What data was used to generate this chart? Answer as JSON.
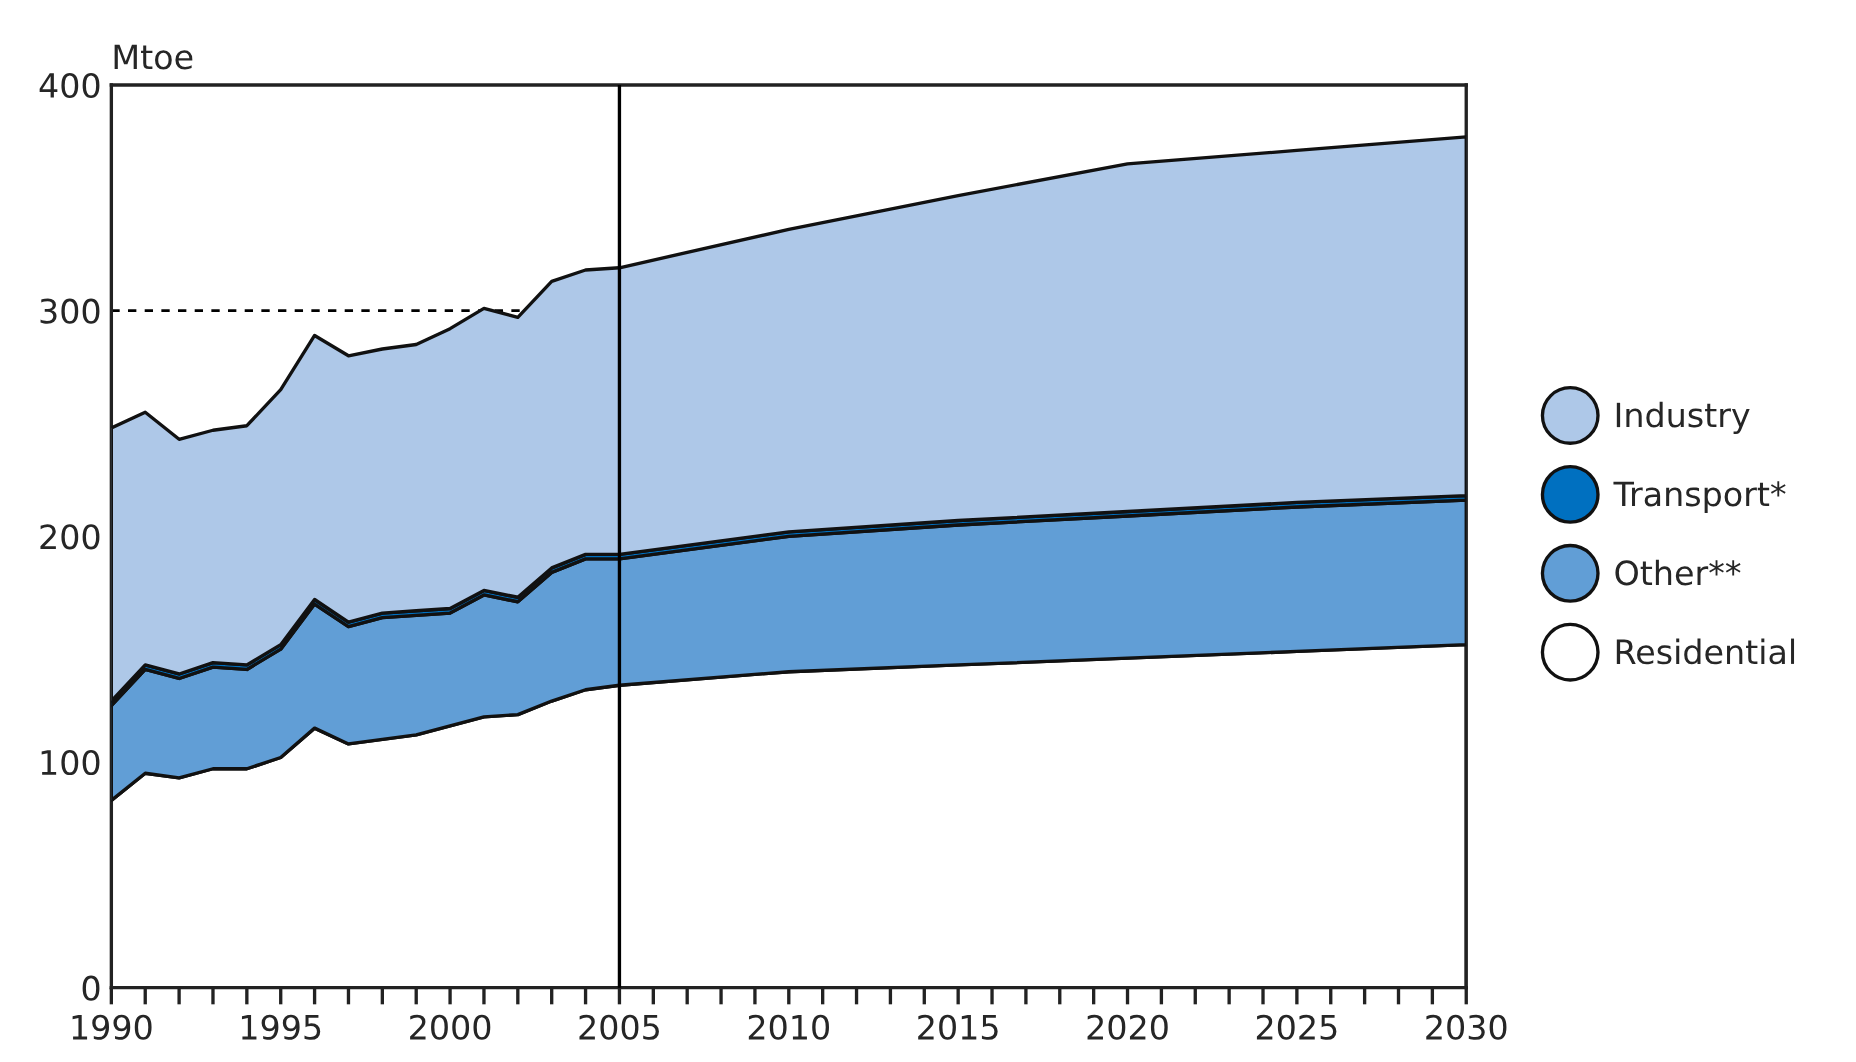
{
  "chart_data": {
    "type": "area",
    "stacked": true,
    "ylabel": "Mtoe",
    "x": [
      1990,
      1991,
      1992,
      1993,
      1994,
      1995,
      1996,
      1997,
      1998,
      1999,
      2000,
      2001,
      2002,
      2003,
      2004,
      2005,
      2010,
      2015,
      2020,
      2025,
      2030
    ],
    "series": [
      {
        "name": "Residential",
        "color": "#ffffff",
        "values": [
          83,
          95,
          93,
          97,
          97,
          102,
          115,
          108,
          110,
          112,
          116,
          120,
          121,
          127,
          132,
          134,
          140,
          143,
          146,
          149,
          152
        ]
      },
      {
        "name": "Other**",
        "color": "#619ed6",
        "values": [
          42,
          46,
          44,
          45,
          44,
          48,
          55,
          52,
          54,
          53,
          50,
          54,
          50,
          57,
          58,
          56,
          60,
          62,
          63,
          64,
          64
        ]
      },
      {
        "name": "Transport*",
        "color": "#0070c0",
        "values": [
          2,
          2,
          2,
          2,
          2,
          2,
          2,
          2,
          2,
          2,
          2,
          2,
          2,
          2,
          2,
          2,
          2,
          2,
          2,
          2,
          2
        ]
      },
      {
        "name": "Industry",
        "color": "#aec8e8",
        "values": [
          121,
          112,
          104,
          103,
          106,
          113,
          117,
          118,
          117,
          118,
          124,
          125,
          124,
          127,
          126,
          127,
          134,
          144,
          154,
          156,
          159
        ]
      }
    ],
    "xlim": [
      1990,
      2030
    ],
    "xticks": [
      1990,
      {
        "value": 1991,
        "label": null
      },
      {
        "value": 1992,
        "label": null
      },
      {
        "value": 1993,
        "label": null
      },
      {
        "value": 1994,
        "label": null
      },
      1995,
      {
        "value": 1996,
        "label": null
      },
      {
        "value": 1997,
        "label": null
      },
      {
        "value": 1998,
        "label": null
      },
      {
        "value": 1999,
        "label": null
      },
      2000,
      {
        "value": 2001,
        "label": null
      },
      {
        "value": 2002,
        "label": null
      },
      {
        "value": 2003,
        "label": null
      },
      {
        "value": 2004,
        "label": null
      },
      2005,
      {
        "value": 2006,
        "label": null
      },
      {
        "value": 2007,
        "label": null
      },
      {
        "value": 2008,
        "label": null
      },
      {
        "value": 2009,
        "label": null
      },
      2010,
      {
        "value": 2011,
        "label": null
      },
      {
        "value": 2012,
        "label": null
      },
      {
        "value": 2013,
        "label": null
      },
      {
        "value": 2014,
        "label": null
      },
      2015,
      {
        "value": 2016,
        "label": null
      },
      {
        "value": 2017,
        "label": null
      },
      {
        "value": 2018,
        "label": null
      },
      {
        "value": 2019,
        "label": null
      },
      2020,
      {
        "value": 2021,
        "label": null
      },
      {
        "value": 2022,
        "label": null
      },
      {
        "value": 2023,
        "label": null
      },
      {
        "value": 2024,
        "label": null
      },
      2025,
      {
        "value": 2026,
        "label": null
      },
      {
        "value": 2027,
        "label": null
      },
      {
        "value": 2028,
        "label": null
      },
      {
        "value": 2029,
        "label": null
      },
      2030
    ],
    "ylim": [
      0,
      400
    ],
    "yticks": [
      0,
      100,
      200,
      300,
      400
    ],
    "ref_lines": [
      {
        "axis": "y",
        "value": 300,
        "color": "#000000",
        "line_style": "dashed"
      },
      {
        "axis": "x",
        "value": 2005,
        "color": "#000000",
        "line_style": "solid"
      }
    ],
    "grid": false,
    "legend": "right"
  }
}
